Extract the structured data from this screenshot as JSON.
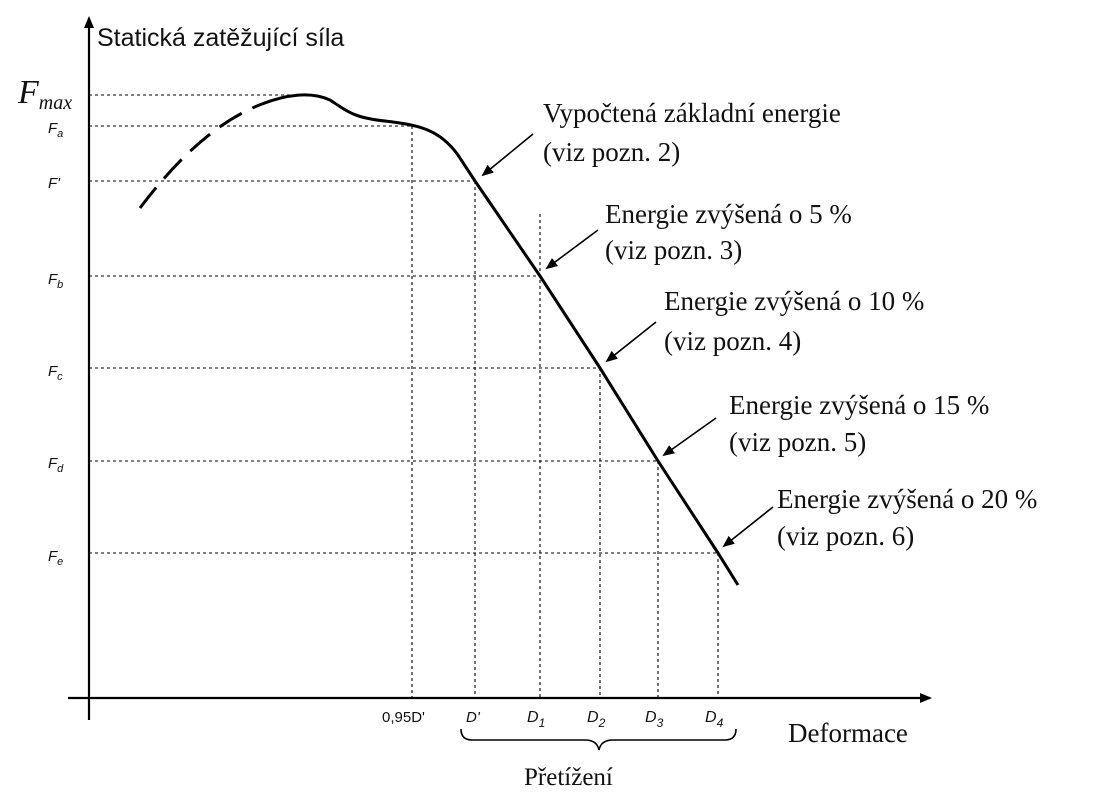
{
  "y_axis_title": "Statická zatěžující síla",
  "x_axis_title": "Deformace",
  "brace_label": "Přetížení",
  "y_labels": {
    "fmax": "F",
    "fmax_sub": "max",
    "fa": "F",
    "fa_sub": "a",
    "fprime": "F'",
    "fb": "F",
    "fb_sub": "b",
    "fc": "F",
    "fc_sub": "c",
    "fd": "F",
    "fd_sub": "d",
    "fe": "F",
    "fe_sub": "e"
  },
  "x_labels": {
    "d095": "0,95D'",
    "dprime": "D'",
    "d1": "D",
    "d1_sub": "1",
    "d2": "D",
    "d2_sub": "2",
    "d3": "D",
    "d3_sub": "3",
    "d4": "D",
    "d4_sub": "4"
  },
  "annotations": [
    {
      "line1": "Vypočtená základní energie",
      "line2": "(viz pozn. 2)"
    },
    {
      "line1": "Energie zvýšená o 5 %",
      "line2": "(viz pozn. 3)"
    },
    {
      "line1": "Energie zvýšená o 10 %",
      "line2": "(viz pozn. 4)"
    },
    {
      "line1": "Energie zvýšená o 15 %",
      "line2": "(viz pozn. 5)"
    },
    {
      "line1": "Energie zvýšená o 20 %",
      "line2": "(viz pozn. 6)"
    }
  ]
}
